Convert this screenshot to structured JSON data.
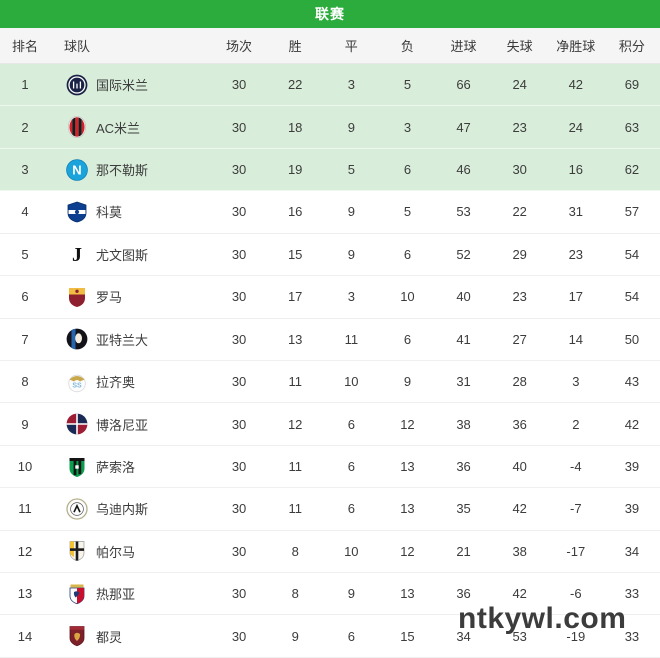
{
  "title": "联赛",
  "watermark": "ntkywl.com",
  "colors": {
    "title_bar_green": "#2bac3c",
    "highlight_row_green": "#d9eeda",
    "header_row_bg": "#f5f5f6",
    "text": "#3c3c3c"
  },
  "table": {
    "columns": [
      "排名",
      "球队",
      "场次",
      "胜",
      "平",
      "负",
      "进球",
      "失球",
      "净胜球",
      "积分"
    ],
    "rows": [
      {
        "rank": 1,
        "team": "国际米兰",
        "logo": "inter-milan-logo",
        "played": 30,
        "win": 22,
        "draw": 3,
        "loss": 5,
        "gf": 66,
        "ga": 24,
        "gd": 42,
        "pts": 69,
        "highlight": true
      },
      {
        "rank": 2,
        "team": "AC米兰",
        "logo": "ac-milan-logo",
        "played": 30,
        "win": 18,
        "draw": 9,
        "loss": 3,
        "gf": 47,
        "ga": 23,
        "gd": 24,
        "pts": 63,
        "highlight": true
      },
      {
        "rank": 3,
        "team": "那不勒斯",
        "logo": "napoli-logo",
        "played": 30,
        "win": 19,
        "draw": 5,
        "loss": 6,
        "gf": 46,
        "ga": 30,
        "gd": 16,
        "pts": 62,
        "highlight": true
      },
      {
        "rank": 4,
        "team": "科莫",
        "logo": "como-logo",
        "played": 30,
        "win": 16,
        "draw": 9,
        "loss": 5,
        "gf": 53,
        "ga": 22,
        "gd": 31,
        "pts": 57,
        "highlight": false
      },
      {
        "rank": 5,
        "team": "尤文图斯",
        "logo": "juventus-logo",
        "played": 30,
        "win": 15,
        "draw": 9,
        "loss": 6,
        "gf": 52,
        "ga": 29,
        "gd": 23,
        "pts": 54,
        "highlight": false
      },
      {
        "rank": 6,
        "team": "罗马",
        "logo": "roma-logo",
        "played": 30,
        "win": 17,
        "draw": 3,
        "loss": 10,
        "gf": 40,
        "ga": 23,
        "gd": 17,
        "pts": 54,
        "highlight": false
      },
      {
        "rank": 7,
        "team": "亚特兰大",
        "logo": "atalanta-logo",
        "played": 30,
        "win": 13,
        "draw": 11,
        "loss": 6,
        "gf": 41,
        "ga": 27,
        "gd": 14,
        "pts": 50,
        "highlight": false
      },
      {
        "rank": 8,
        "team": "拉齐奥",
        "logo": "lazio-logo",
        "played": 30,
        "win": 11,
        "draw": 10,
        "loss": 9,
        "gf": 31,
        "ga": 28,
        "gd": 3,
        "pts": 43,
        "highlight": false
      },
      {
        "rank": 9,
        "team": "博洛尼亚",
        "logo": "bologna-logo",
        "played": 30,
        "win": 12,
        "draw": 6,
        "loss": 12,
        "gf": 38,
        "ga": 36,
        "gd": 2,
        "pts": 42,
        "highlight": false
      },
      {
        "rank": 10,
        "team": "萨索洛",
        "logo": "sassuolo-logo",
        "played": 30,
        "win": 11,
        "draw": 6,
        "loss": 13,
        "gf": 36,
        "ga": 40,
        "gd": -4,
        "pts": 39,
        "highlight": false
      },
      {
        "rank": 11,
        "team": "乌迪内斯",
        "logo": "udinese-logo",
        "played": 30,
        "win": 11,
        "draw": 6,
        "loss": 13,
        "gf": 35,
        "ga": 42,
        "gd": -7,
        "pts": 39,
        "highlight": false
      },
      {
        "rank": 12,
        "team": "帕尔马",
        "logo": "parma-logo",
        "played": 30,
        "win": 8,
        "draw": 10,
        "loss": 12,
        "gf": 21,
        "ga": 38,
        "gd": -17,
        "pts": 34,
        "highlight": false
      },
      {
        "rank": 13,
        "team": "热那亚",
        "logo": "genoa-logo",
        "played": 30,
        "win": 8,
        "draw": 9,
        "loss": 13,
        "gf": 36,
        "ga": 42,
        "gd": -6,
        "pts": 33,
        "highlight": false
      },
      {
        "rank": 14,
        "team": "都灵",
        "logo": "torino-logo",
        "played": 30,
        "win": 9,
        "draw": 6,
        "loss": 15,
        "gf": 34,
        "ga": 53,
        "gd": -19,
        "pts": 33,
        "highlight": false
      }
    ]
  }
}
